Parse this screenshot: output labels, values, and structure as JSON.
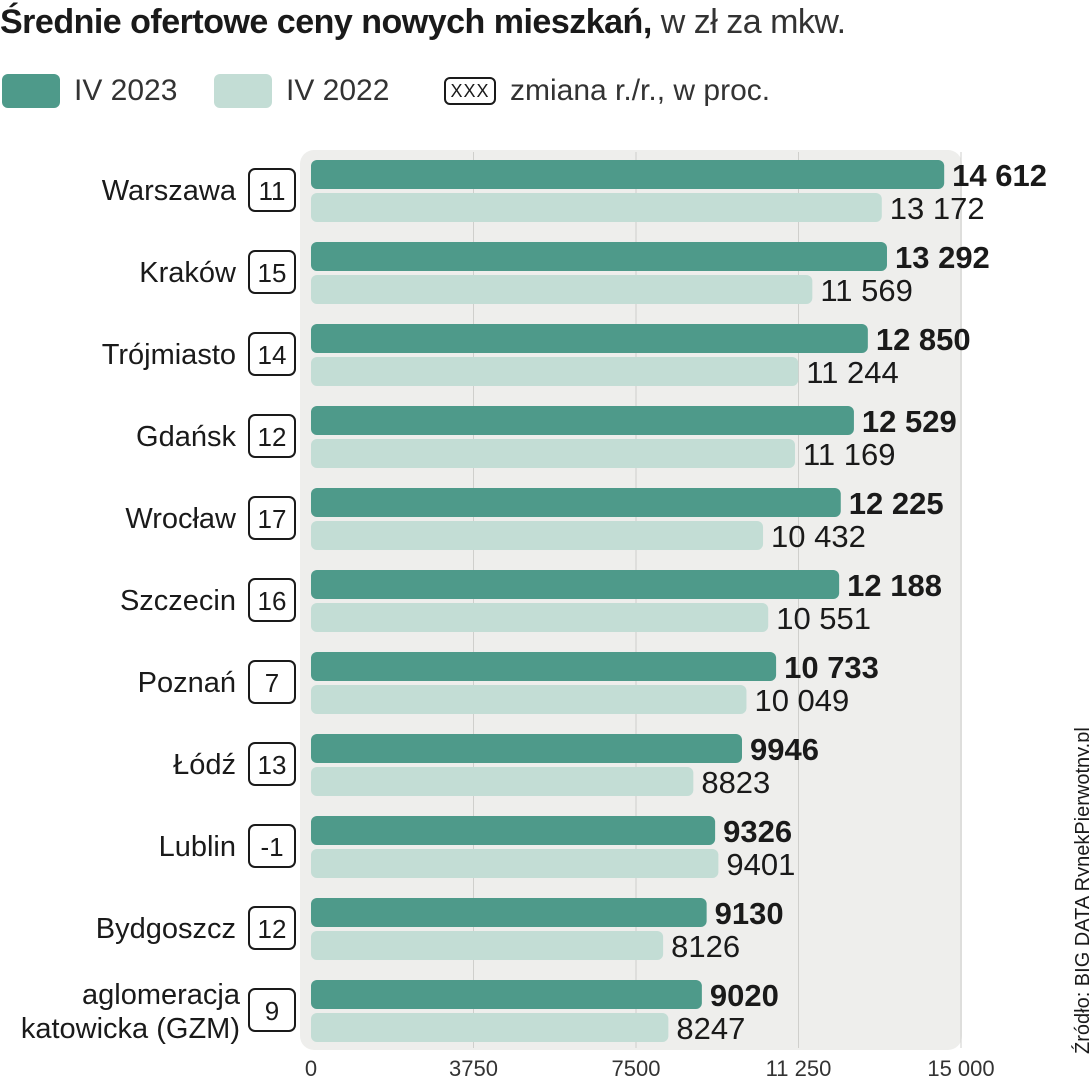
{
  "title": {
    "main": "Średnie ofertowe ceny nowych mieszkań,",
    "unit": " w zł za mkw."
  },
  "legend": {
    "series_2023": "IV 2023",
    "series_2022": "IV 2022",
    "change_box": "XXX",
    "change_label": "zmiana r./r., w proc."
  },
  "source": "Źródło: BIG DATA RynekPierwotny.pl",
  "colors": {
    "series_2023": "#4e9a8a",
    "series_2022": "#c3ddd5",
    "plot_bg": "#eeeeec"
  },
  "chart_data": {
    "type": "bar",
    "orientation": "horizontal",
    "categories": [
      [
        "Warszawa"
      ],
      [
        "Kraków"
      ],
      [
        "Trójmiasto"
      ],
      [
        "Gdańsk"
      ],
      [
        "Wrocław"
      ],
      [
        "Szczecin"
      ],
      [
        "Poznań"
      ],
      [
        "Łódź"
      ],
      [
        "Lublin"
      ],
      [
        "Bydgoszcz"
      ],
      [
        "aglomeracja",
        "katowicka (GZM)"
      ]
    ],
    "series": [
      {
        "name": "IV 2023",
        "values": [
          14612,
          13292,
          12850,
          12529,
          12225,
          12188,
          10733,
          9946,
          9326,
          9130,
          9020
        ],
        "labels": [
          "14 612",
          "13 292",
          "12 850",
          "12 529",
          "12 225",
          "12 188",
          "10 733",
          "9946",
          "9326",
          "9130",
          "9020"
        ]
      },
      {
        "name": "IV 2022",
        "values": [
          13172,
          11569,
          11244,
          11169,
          10432,
          10551,
          10049,
          8823,
          9401,
          8126,
          8247
        ],
        "labels": [
          "13 172",
          "11 569",
          "11 244",
          "11 169",
          "10 432",
          "10 551",
          "10 049",
          "8823",
          "9401",
          "8126",
          "8247"
        ]
      }
    ],
    "change_yoy_pct": [
      "11",
      "15",
      "14",
      "12",
      "17",
      "16",
      "7",
      "13",
      "-1",
      "12",
      "9"
    ],
    "xlim": [
      0,
      15000
    ],
    "xticks": [
      0,
      3750,
      7500,
      11250,
      15000
    ],
    "xtick_labels": [
      "0",
      "3750",
      "7500",
      "11 250",
      "15 000"
    ],
    "grid": true,
    "legend_position": "top-left"
  }
}
